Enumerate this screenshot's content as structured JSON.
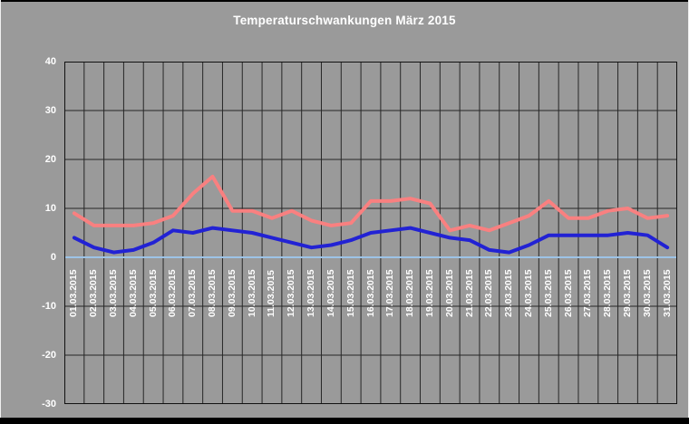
{
  "chart_data": {
    "type": "line",
    "title": "Temperaturschwankungen März 2015",
    "categories": [
      "01.03.2015",
      "02.03.2015",
      "03.03.2015",
      "04.03.2015",
      "05.03.2015",
      "06.03.2015",
      "07.03.2015",
      "08.03.2015",
      "09.03.2015",
      "10.03.2015",
      "11.03.2015",
      "12.03.2015",
      "13.03.2015",
      "14.03.2015",
      "15.03.2015",
      "16.03.2015",
      "17.03.2015",
      "18.03.2015",
      "19.03.2015",
      "20.03.2015",
      "21.03.2015",
      "22.03.2015",
      "23.03.2015",
      "24.03.2015",
      "25.03.2015",
      "26.03.2015",
      "27.03.2015",
      "28.03.2015",
      "29.03.2015",
      "30.03.2015",
      "31.03.2015"
    ],
    "series": [
      {
        "id": "red-line",
        "color": "#f98080",
        "values": [
          9,
          6.5,
          6.5,
          6.5,
          7,
          8.5,
          13,
          16.5,
          9.5,
          9.5,
          8,
          9.5,
          7.5,
          6.5,
          7,
          11.5,
          11.5,
          12,
          11,
          5.5,
          6.5,
          5.5,
          7,
          8.5,
          11.5,
          8,
          8,
          9.5,
          10,
          8,
          8.5
        ]
      },
      {
        "id": "blue-line",
        "color": "#2222d4",
        "values": [
          4,
          2,
          1,
          1.5,
          3,
          5.5,
          5,
          6,
          5.5,
          5,
          4,
          3,
          2,
          2.5,
          3.5,
          5,
          5.5,
          6,
          5,
          4,
          3.5,
          1.5,
          1,
          2.5,
          4.5,
          4.5,
          4.5,
          4.5,
          5,
          4.5,
          2
        ]
      }
    ],
    "ylim": [
      -30,
      40
    ],
    "yticks": [
      40,
      30,
      20,
      10,
      0,
      -10,
      -20,
      -30
    ],
    "xlabel": "",
    "ylabel": "",
    "grid": true,
    "legend_position": "none",
    "zero_line_value": 0
  },
  "colors": {
    "background": "#9a9a9a",
    "gridline": "#262626",
    "plot_border": "#111111",
    "text": "#ffffff",
    "zero_line": "#9dc3e6",
    "series_red": "#f98080",
    "series_blue": "#2222d4"
  }
}
